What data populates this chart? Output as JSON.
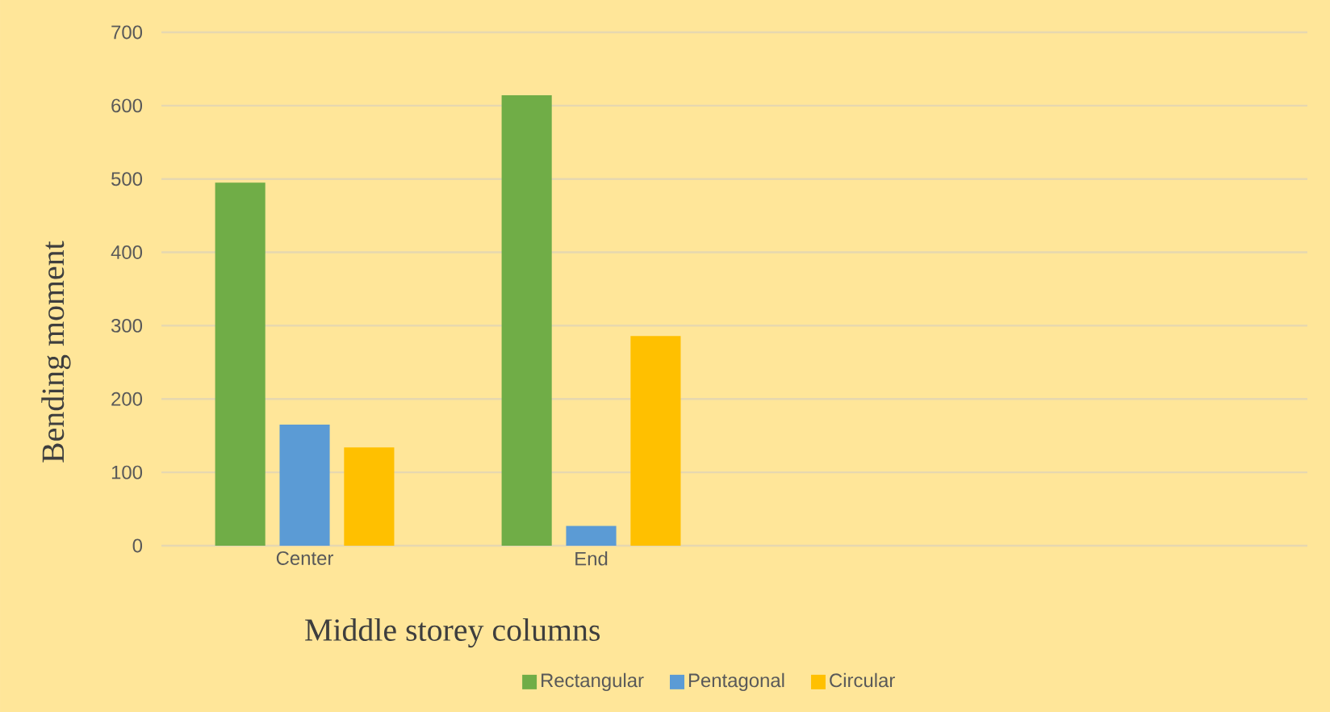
{
  "chart_data": {
    "type": "bar",
    "xlabel": "Middle storey columns",
    "ylabel": "Bending moment",
    "categories": [
      "Center",
      "End",
      null,
      null
    ],
    "series": [
      {
        "name": "Rectangular",
        "color": "#70ad47",
        "values": [
          495,
          614,
          null,
          null
        ]
      },
      {
        "name": "Pentagonal",
        "color": "#5b9bd5",
        "values": [
          165,
          27,
          null,
          null
        ]
      },
      {
        "name": "Circular",
        "color": "#ffc000",
        "values": [
          134,
          286,
          null,
          null
        ]
      }
    ],
    "ylim": [
      0,
      700
    ],
    "yticks": [
      0,
      100,
      200,
      300,
      400,
      500,
      600,
      700
    ],
    "grid": "y",
    "legend": "bottom"
  }
}
